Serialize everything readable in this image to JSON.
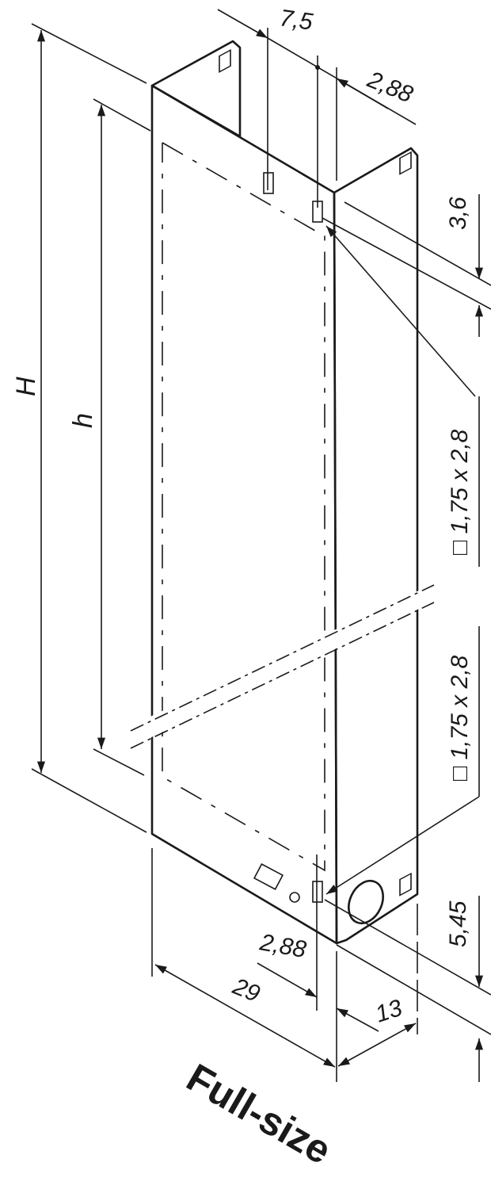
{
  "drawing": {
    "title": "Full-size",
    "panel_color": "#d4d4d4",
    "line_color": "#1a1a1a",
    "labels": {
      "overall_height": "H",
      "usable_height": "h"
    },
    "dimensions": {
      "top_offset": "7,5",
      "top_offset_small": "2,88",
      "top_vertical": "3,6",
      "slot_upper": "□ 1,75 x 2,8",
      "slot_lower": "□ 1,75 x 2,8",
      "bottom_vertical": "5,45",
      "bottom_offset_small": "2,88",
      "depth": "29",
      "width": "13"
    }
  }
}
